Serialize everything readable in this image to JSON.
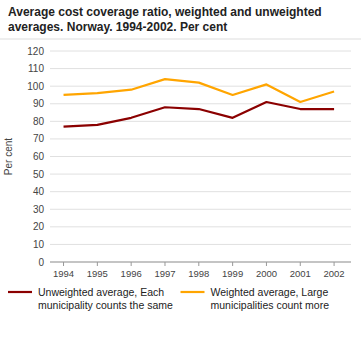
{
  "chart_data": {
    "type": "line",
    "title": "Average cost coverage ratio, weighted and unweighted averages. Norway. 1994-2002. Per cent",
    "y_label": "Per cent",
    "x": [
      1994,
      1995,
      1996,
      1997,
      1998,
      1999,
      2000,
      2001,
      2002
    ],
    "xlim": [
      1993.6,
      2002.5
    ],
    "xticks": [
      1994,
      1995,
      1996,
      1997,
      1998,
      1999,
      2000,
      2001,
      2002
    ],
    "ylim": [
      0,
      120
    ],
    "yticks": [
      0,
      10,
      20,
      30,
      40,
      50,
      60,
      70,
      80,
      90,
      100,
      110,
      120
    ],
    "grid": true,
    "series": [
      {
        "name": "Unweighted average, Each municipality counts the same",
        "color": "#8B0000",
        "values": [
          77,
          78,
          82,
          88,
          87,
          82,
          91,
          87,
          87
        ]
      },
      {
        "name": "Weighted average, Large municipalities count more",
        "color": "#FFA500",
        "values": [
          95,
          96,
          98,
          104,
          102,
          95,
          101,
          91,
          97
        ]
      }
    ]
  }
}
